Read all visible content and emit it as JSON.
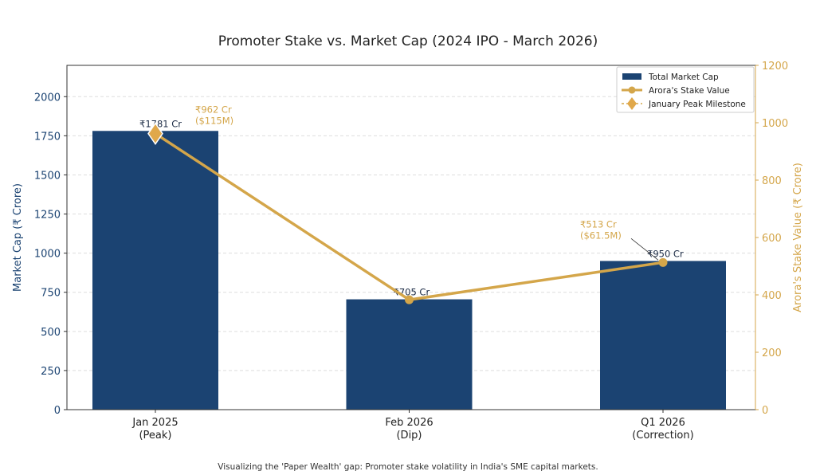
{
  "chart_data": {
    "type": "bar+line",
    "title": "Promoter Stake vs. Market Cap (2024 IPO - March 2026)",
    "caption": "Visualizing the 'Paper Wealth' gap: Promoter stake volatility in India's SME capital markets.",
    "categories": [
      "Jan 2025\n(Peak)",
      "Feb 2026\n(Dip)",
      "Q1 2026\n(Correction)"
    ],
    "ylabel_left": "Market Cap (₹ Crore)",
    "ylabel_right": "Arora's Stake Value (₹ Crore)",
    "ylim_left": [
      0,
      2200
    ],
    "ylim_right": [
      0,
      1200
    ],
    "yticks_left": [
      0,
      250,
      500,
      750,
      1000,
      1250,
      1500,
      1750,
      2000
    ],
    "yticks_right": [
      0,
      200,
      400,
      600,
      800,
      1000,
      1200
    ],
    "grid": "horizontal dashed",
    "legend_placement": "top-right",
    "series": [
      {
        "name": "Total Market Cap",
        "kind": "bar",
        "axis": "left",
        "color": "#1b4372",
        "values": [
          1781,
          705,
          950
        ],
        "labels": [
          "₹1781 Cr",
          "₹705 Cr",
          "₹950 Cr"
        ]
      },
      {
        "name": "Arora's Stake Value",
        "kind": "line",
        "axis": "right",
        "color": "#d4a64a",
        "values": [
          962,
          383,
          513
        ],
        "labels": [
          "₹962 Cr\n($115M)",
          "",
          "₹513 Cr\n($61.5M)"
        ]
      },
      {
        "name": "January Peak Milestone",
        "kind": "marker",
        "axis": "right",
        "color": "#d4a64a",
        "marker": "diamond",
        "values": [
          962,
          null,
          null
        ]
      }
    ]
  }
}
